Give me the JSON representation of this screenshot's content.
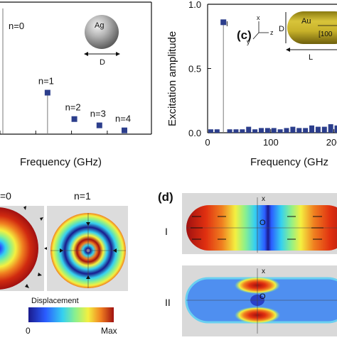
{
  "panel_a": {
    "xlabel": "Frequency (GHz)",
    "sphere_label": "Ag",
    "size_label": "D"
  },
  "panel_c": {
    "tag": "(c)",
    "ylabel": "Excitation amplitude",
    "xlabel": "Frequency (GHz",
    "rod_label": "Au",
    "rod_direction": "[100",
    "diameter_label": "D",
    "length_label": "L",
    "axis_x": "x",
    "axis_y": "y",
    "axis_z": "z",
    "mode_marker": "I"
  },
  "panel_b": {
    "mode0_label": "=0",
    "mode1_label": "n=1",
    "colorbar_title": "Displacement",
    "colorbar_min": "0",
    "colorbar_max": "Max"
  },
  "panel_d": {
    "tag": "(d)",
    "mode1_label": "I",
    "mode2_label": "II",
    "axis_label_1": "x",
    "axis_label_2": "x",
    "origin_label_1": "O",
    "origin_label_2": "O"
  },
  "chart_data": [
    {
      "type": "scatter",
      "x": [
        20,
        270,
        420,
        560,
        700
      ],
      "y": [
        1.0,
        0.33,
        0.12,
        0.07,
        0.03
      ],
      "point_labels": [
        "n=0",
        "n=1",
        "n=2",
        "n=3",
        "n=4"
      ],
      "xlabel": "Frequency (GHz)",
      "ylabel": "",
      "xlim": [
        0,
        800
      ],
      "ylim": [
        0,
        1.05
      ],
      "stems_for": [
        "n=0",
        "n=1"
      ]
    },
    {
      "type": "bar",
      "x": [
        5,
        15,
        25,
        35,
        45,
        55,
        65,
        75,
        85,
        95,
        105,
        115,
        125,
        135,
        145,
        155,
        165,
        175,
        185,
        195,
        205,
        215,
        225,
        235,
        245
      ],
      "values": [
        0.01,
        0.01,
        0.86,
        0.01,
        0.01,
        0.01,
        0.03,
        0.01,
        0.02,
        0.02,
        0.02,
        0.01,
        0.02,
        0.03,
        0.02,
        0.02,
        0.04,
        0.03,
        0.03,
        0.05,
        0.04,
        0.04,
        0.03,
        0.03,
        0.02
      ],
      "xlabel": "Frequency (GHz",
      "ylabel": "Excitation amplitude",
      "xlim": [
        0,
        250
      ],
      "ylim": [
        0,
        1.0
      ],
      "yticks": [
        "0.0",
        "0.5",
        "1.0"
      ],
      "xticks": [
        "0",
        "100",
        "200"
      ]
    }
  ]
}
